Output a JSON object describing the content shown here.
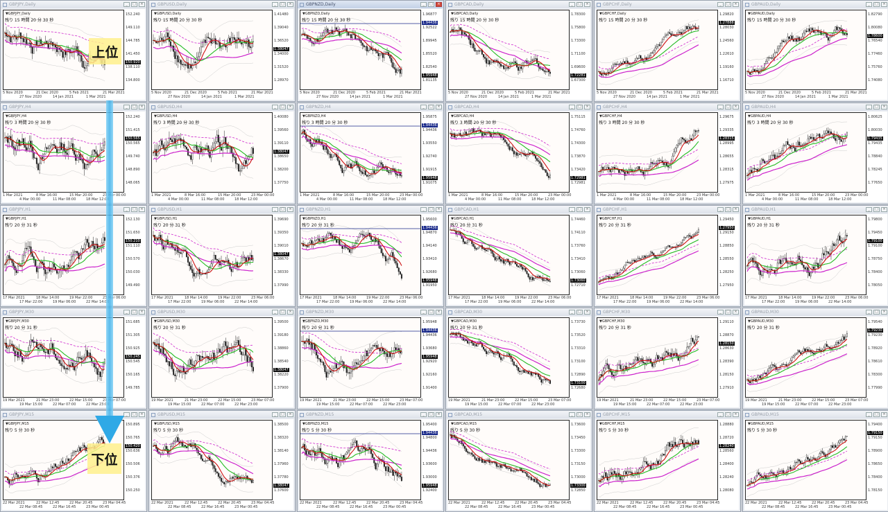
{
  "rows": [
    {
      "timeframe": "Daily",
      "countdown": "残り 15 時間 20 分 30 秒",
      "times": [
        "5 Nov 2020",
        "27 Nov 2020",
        "21 Dec 2020",
        "14 Jan 2021",
        "5 Feb 2021",
        "1 Mar 2021",
        "21 Mar 2021"
      ]
    },
    {
      "timeframe": "H4",
      "countdown": "残り 3 時間 20 分 30 秒",
      "times": [
        "1 Mar 2021",
        "4 Mar 00:00",
        "8 Mar 16:00",
        "11 Mar 08:00",
        "15 Mar 20:00",
        "18 Mar 12:00",
        "23 Mar 00:00"
      ]
    },
    {
      "timeframe": "H1",
      "countdown": "残り 20 分 31 秒",
      "times": [
        "17 Mar 2021",
        "17 Mar 22:00",
        "18 Mar 14:00",
        "19 Mar 06:00",
        "19 Mar 22:00",
        "22 Mar 14:00",
        "23 Mar 06:00"
      ]
    },
    {
      "timeframe": "M30",
      "countdown": "残り 20 分 31 秒",
      "times": [
        "19 Mar 2021",
        "19 Mar 15:00",
        "21 Mar 23:00",
        "22 Mar 07:00",
        "22 Mar 15:00",
        "22 Mar 23:00",
        "23 Mar 07:00"
      ]
    },
    {
      "timeframe": "M15",
      "countdown": "残り 5 分 30 秒",
      "times": [
        "22 Mar 2021",
        "22 Mar 08:45",
        "22 Mar 12:45",
        "22 Mar 16:45",
        "22 Mar 20:45",
        "23 Mar 00:45",
        "23 Mar 04:45"
      ]
    }
  ],
  "windows": [
    {
      "title": "GBPJPY,Daily",
      "prices": [
        "152.240",
        "149.110",
        "144.785",
        "141.450",
        "138.110",
        "134.800"
      ],
      "current": "150.920"
    },
    {
      "title": "GBPUSD,Daily",
      "prices": [
        "1.41480",
        "1.39040",
        "1.36520",
        "1.34000",
        "1.31520",
        "1.28970"
      ],
      "current": "1.38047"
    },
    {
      "title": "GBPNZD,Daily",
      "prices": [
        "1.96877",
        "1.92522",
        "1.89945",
        "1.85520",
        "1.82540",
        "1.81135"
      ],
      "current": "1.95948",
      "line": "1.94436"
    },
    {
      "title": "GBPCAD,Daily",
      "prices": [
        "1.78300",
        "1.75800",
        "1.73300",
        "1.71100",
        "1.69600",
        "1.67300"
      ],
      "current": "1.72281"
    },
    {
      "title": "GBPCHF,Daily",
      "prices": [
        "1.29820",
        "1.28030",
        "1.24560",
        "1.22610",
        "1.19160",
        "1.16710"
      ],
      "current": "1.27888"
    },
    {
      "title": "GBPAUD,Daily",
      "prices": [
        "1.82790",
        "1.80080",
        "1.76540",
        "1.77460",
        "1.75760",
        "1.74080"
      ],
      "current": "1.78600"
    },
    {
      "title": "GBPJPY,H4",
      "prices": [
        "152.240",
        "151.415",
        "150.565",
        "149.740",
        "148.890",
        "148.065"
      ],
      "current": "150.565"
    },
    {
      "title": "GBPUSD,H4",
      "prices": [
        "1.40080",
        "1.39560",
        "1.39110",
        "1.38650",
        "1.38200",
        "1.37750"
      ],
      "current": "1.38047"
    },
    {
      "title": "GBPNZD,H4",
      "prices": [
        "1.95875",
        "1.94436",
        "1.93550",
        "1.92740",
        "1.91915",
        "1.91075"
      ],
      "current": "1.95948",
      "line": "1.94436"
    },
    {
      "title": "GBPCAD,H4",
      "prices": [
        "1.75115",
        "1.74760",
        "1.74300",
        "1.73870",
        "1.73420",
        "1.72981"
      ],
      "current": "1.72981"
    },
    {
      "title": "GBPCHF,H4",
      "prices": [
        "1.29675",
        "1.29335",
        "1.28995",
        "1.28655",
        "1.28315",
        "1.27975"
      ],
      "current": "1.28315"
    },
    {
      "title": "GBPAUD,H4",
      "prices": [
        "1.80625",
        "1.80030",
        "1.79435",
        "1.78840",
        "1.78245",
        "1.77650"
      ],
      "current": "1.79435"
    },
    {
      "title": "GBPJPY,H1",
      "prices": [
        "152.130",
        "151.650",
        "151.110",
        "150.570",
        "150.030",
        "149.490"
      ],
      "current": "150.210"
    },
    {
      "title": "GBPUSD,H1",
      "prices": [
        "1.39690",
        "1.39350",
        "1.39010",
        "1.38670",
        "1.38330",
        "1.37990"
      ],
      "current": "1.38047"
    },
    {
      "title": "GBPNZD,H1",
      "prices": [
        "1.95600",
        "1.94870",
        "1.94140",
        "1.93410",
        "1.92680",
        "1.91950"
      ],
      "current": "1.95948",
      "line": "1.94436"
    },
    {
      "title": "GBPCAD,H1",
      "prices": [
        "1.74460",
        "1.74110",
        "1.73760",
        "1.73410",
        "1.73060",
        "1.72710"
      ],
      "current": "1.73060"
    },
    {
      "title": "GBPCHF,H1",
      "prices": [
        "1.29450",
        "1.29150",
        "1.28850",
        "1.28550",
        "1.28250",
        "1.27950"
      ],
      "current": "1.27950"
    },
    {
      "title": "GBPAUD,H1",
      "prices": [
        "1.79800",
        "1.79450",
        "1.79100",
        "1.78750",
        "1.78400",
        "1.78050"
      ],
      "current": "1.79100"
    },
    {
      "title": "GBPJPY,M30",
      "prices": [
        "151.685",
        "151.305",
        "150.925",
        "150.545",
        "150.165",
        "149.785"
      ],
      "current": "150.245"
    },
    {
      "title": "GBPUSD,M30",
      "prices": [
        "1.39500",
        "1.39180",
        "1.38860",
        "1.38540",
        "1.38220",
        "1.37900"
      ],
      "current": "1.38047"
    },
    {
      "title": "GBPNZD,M30",
      "prices": [
        "1.95948",
        "1.94436",
        "1.93680",
        "1.92920",
        "1.92160",
        "1.91400"
      ],
      "current": "1.95948",
      "line": "1.94436"
    },
    {
      "title": "GBPCAD,M30",
      "prices": [
        "1.73730",
        "1.73520",
        "1.73310",
        "1.73100",
        "1.72890",
        "1.72680"
      ],
      "current": "1.73100"
    },
    {
      "title": "GBPCHF,M30",
      "prices": [
        "1.29110",
        "1.28870",
        "1.28630",
        "1.28390",
        "1.28150",
        "1.27910"
      ],
      "current": "1.28150"
    },
    {
      "title": "GBPAUD,M30",
      "prices": [
        "1.79540",
        "1.79230",
        "1.78920",
        "1.78610",
        "1.78300",
        "1.77990"
      ],
      "current": "1.79230"
    },
    {
      "title": "GBPJPY,M15",
      "prices": [
        "150.895",
        "150.765",
        "150.636",
        "150.506",
        "150.376",
        "150.250"
      ],
      "current": "150.420"
    },
    {
      "title": "GBPUSD,M15",
      "prices": [
        "1.38500",
        "1.38320",
        "1.38140",
        "1.37960",
        "1.37780",
        "1.37600"
      ],
      "current": "1.38047"
    },
    {
      "title": "GBPNZD,M15",
      "prices": [
        "1.95400",
        "1.94800",
        "1.94436",
        "1.93600",
        "1.93000",
        "1.92400"
      ],
      "current": "1.95948",
      "line": "1.94436"
    },
    {
      "title": "GBPCAD,M15",
      "prices": [
        "1.73600",
        "1.73450",
        "1.73300",
        "1.73150",
        "1.73000",
        "1.72850"
      ],
      "current": "1.73300"
    },
    {
      "title": "GBPCHF,M15",
      "prices": [
        "1.28880",
        "1.28720",
        "1.28560",
        "1.28400",
        "1.28240",
        "1.28080"
      ],
      "current": "1.28240"
    },
    {
      "title": "GBPAUD,M15",
      "prices": [
        "1.79400",
        "1.79150",
        "1.78900",
        "1.78650",
        "1.78400",
        "1.78150"
      ],
      "current": "1.79150"
    }
  ],
  "overlay": {
    "upper_label": "上位",
    "lower_label": "下位",
    "arrow_color": "#2fa9e6"
  },
  "colors": {
    "ma_fast": "#cc1111",
    "ma_mid": "#22bb22",
    "ma_slow": "#cc22cc",
    "candle": "#222222"
  }
}
